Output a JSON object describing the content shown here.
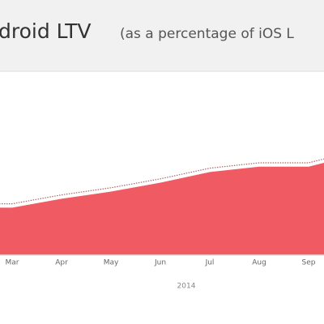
{
  "chart_data": {
    "type": "area",
    "title": "droid LTV",
    "subtitle": "(as a percentage of iOS L",
    "categories": [
      null,
      "Mar",
      "Apr",
      "May",
      "Jun",
      "Jul",
      "Aug",
      "Sep",
      null
    ],
    "values": [
      27,
      27,
      32,
      36,
      41,
      47,
      50,
      50,
      57
    ],
    "color": "#f05a63",
    "ylim": [
      0,
      100
    ],
    "xlabel": "2014"
  }
}
